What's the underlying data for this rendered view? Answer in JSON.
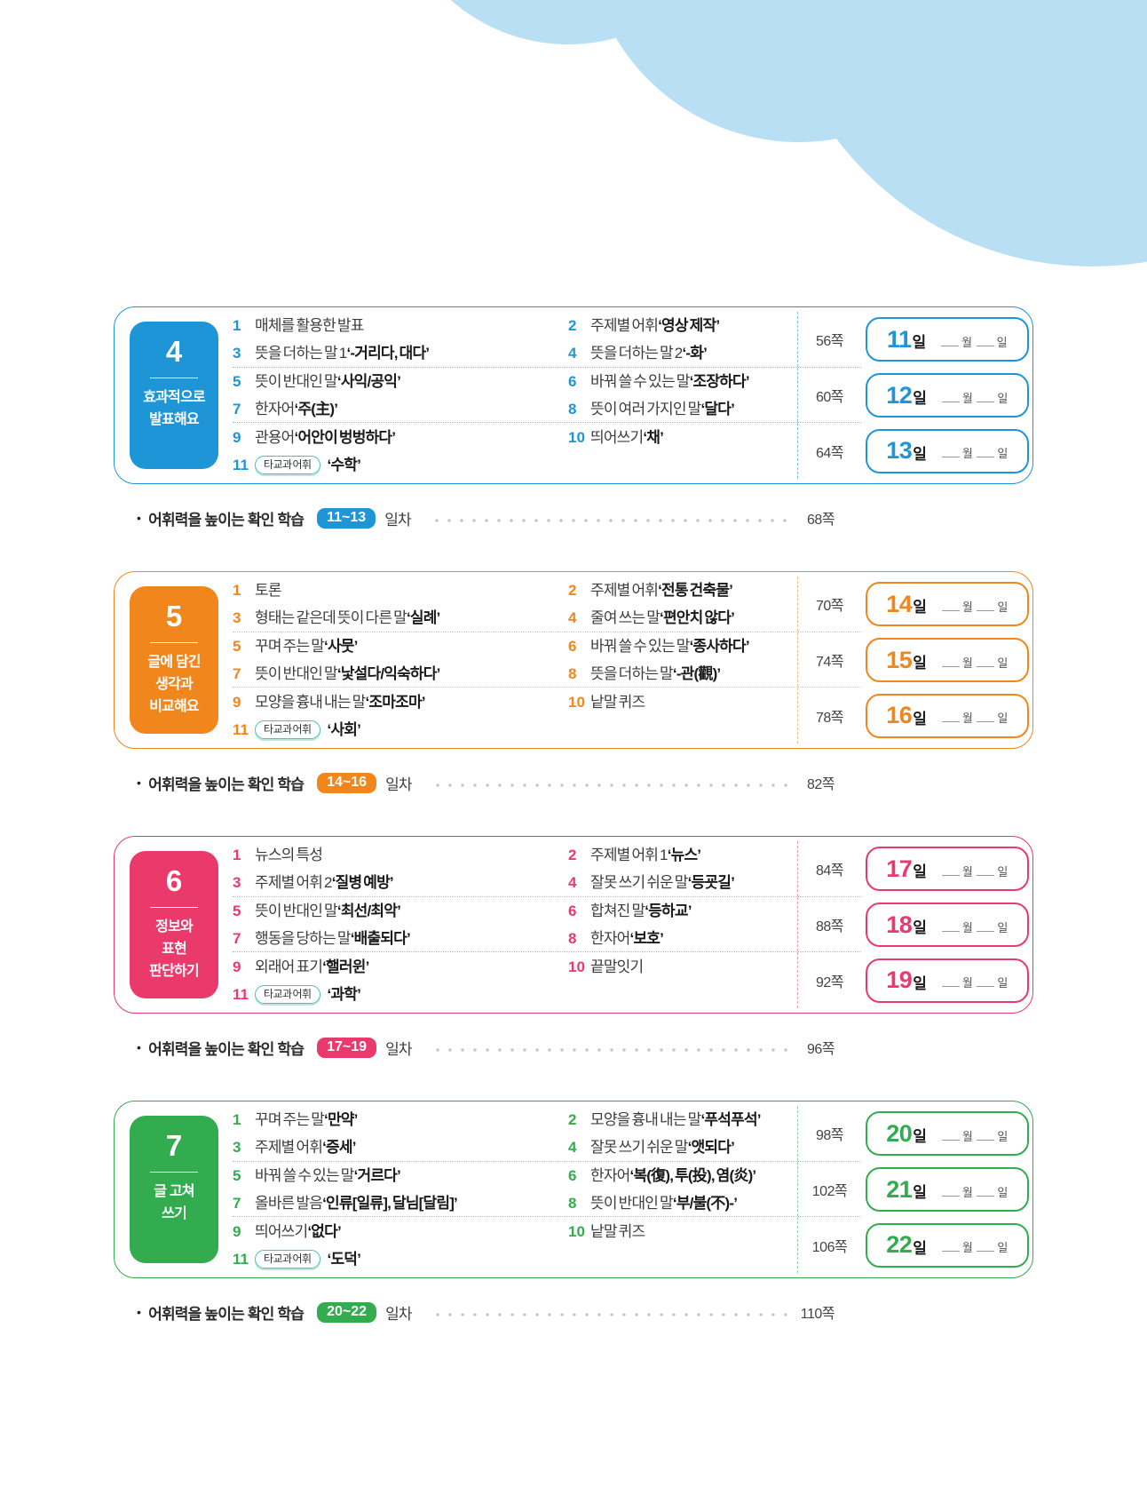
{
  "page": {
    "background": "#ffffff",
    "cloud_color": "#b8dff4"
  },
  "badge_label": "타교과 어휘",
  "day_box_template": {
    "day_suffix": "일",
    "month_label": "월",
    "date_label": "일"
  },
  "check_template": {
    "bullet": "•",
    "label": "어휘력을 높이는 확인 학습",
    "suffix": "일차"
  },
  "sections": [
    {
      "number": "4",
      "title_lines": [
        "효과적으로",
        "발표해요"
      ],
      "color": "#1e95d6",
      "color_light": "#7ec2e8",
      "rows": [
        {
          "page": "56쪽",
          "day_number": "11",
          "left": [
            {
              "num": "1",
              "pre": "매체를 활용한 발표",
              "bold": ""
            },
            {
              "num": "3",
              "pre": "뜻을 더하는 말 1 ",
              "bold": "‘-거리다, 대다’"
            }
          ],
          "right": [
            {
              "num": "2",
              "pre": "주제별 어휘 ",
              "bold": "‘영상 제작’"
            },
            {
              "num": "4",
              "pre": "뜻을 더하는 말 2 ",
              "bold": "‘-화’"
            }
          ]
        },
        {
          "page": "60쪽",
          "day_number": "12",
          "left": [
            {
              "num": "5",
              "pre": "뜻이 반대인 말 ",
              "bold": "‘사익/공익’"
            },
            {
              "num": "7",
              "pre": "한자어 ",
              "bold": "‘주(主)’"
            }
          ],
          "right": [
            {
              "num": "6",
              "pre": "바꿔 쓸 수 있는 말 ",
              "bold": "‘조장하다’"
            },
            {
              "num": "8",
              "pre": "뜻이 여러 가지인 말 ",
              "bold": "‘달다’"
            }
          ]
        },
        {
          "page": "64쪽",
          "day_number": "13",
          "left": [
            {
              "num": "9",
              "pre": "관용어 ",
              "bold": "‘어안이 벙벙하다’"
            },
            {
              "num": "11",
              "badge": true,
              "pre": "",
              "bold": "‘수학’"
            }
          ],
          "right": [
            {
              "num": "10",
              "pre": "띄어쓰기 ",
              "bold": "‘채’"
            }
          ]
        }
      ],
      "check": {
        "range": "11~13",
        "page": "68쪽"
      }
    },
    {
      "number": "5",
      "title_lines": [
        "글에 담긴",
        "생각과",
        "비교해요"
      ],
      "color": "#f0861c",
      "color_light": "#f6bd85",
      "rows": [
        {
          "page": "70쪽",
          "day_number": "14",
          "left": [
            {
              "num": "1",
              "pre": "토론",
              "bold": ""
            },
            {
              "num": "3",
              "pre": "형태는 같은데 뜻이 다른 말 ",
              "bold": "‘실례’"
            }
          ],
          "right": [
            {
              "num": "2",
              "pre": "주제별 어휘 ",
              "bold": "‘전통 건축물’"
            },
            {
              "num": "4",
              "pre": "줄여 쓰는 말 ",
              "bold": "‘편안치 않다’"
            }
          ]
        },
        {
          "page": "74쪽",
          "day_number": "15",
          "left": [
            {
              "num": "5",
              "pre": "꾸며 주는 말 ",
              "bold": "‘사뭇’"
            },
            {
              "num": "7",
              "pre": "뜻이 반대인 말 ",
              "bold": "‘낯설다/익숙하다’"
            }
          ],
          "right": [
            {
              "num": "6",
              "pre": "바꿔 쓸 수 있는 말 ",
              "bold": "‘종사하다’"
            },
            {
              "num": "8",
              "pre": "뜻을 더하는 말 ",
              "bold": "‘-관(觀)’"
            }
          ]
        },
        {
          "page": "78쪽",
          "day_number": "16",
          "left": [
            {
              "num": "9",
              "pre": "모양을 흉내 내는 말 ",
              "bold": "‘조마조마’"
            },
            {
              "num": "11",
              "badge": true,
              "pre": "",
              "bold": "‘사회’"
            }
          ],
          "right": [
            {
              "num": "10",
              "pre": "낱말 퀴즈",
              "bold": ""
            }
          ]
        }
      ],
      "check": {
        "range": "14~16",
        "page": "82쪽"
      }
    },
    {
      "number": "6",
      "title_lines": [
        "정보와",
        "표현",
        "판단하기"
      ],
      "color": "#ea3a6b",
      "color_light": "#f49ab4",
      "rows": [
        {
          "page": "84쪽",
          "day_number": "17",
          "left": [
            {
              "num": "1",
              "pre": "뉴스의 특성",
              "bold": ""
            },
            {
              "num": "3",
              "pre": "주제별 어휘 2 ",
              "bold": "‘질병 예방’"
            }
          ],
          "right": [
            {
              "num": "2",
              "pre": "주제별 어휘 1 ",
              "bold": "‘뉴스’"
            },
            {
              "num": "4",
              "pre": "잘못 쓰기 쉬운 말 ",
              "bold": "‘등굣길’"
            }
          ]
        },
        {
          "page": "88쪽",
          "day_number": "18",
          "left": [
            {
              "num": "5",
              "pre": "뜻이 반대인 말 ",
              "bold": "‘최선/최악’"
            },
            {
              "num": "7",
              "pre": "행동을 당하는 말 ",
              "bold": "‘배출되다’"
            }
          ],
          "right": [
            {
              "num": "6",
              "pre": "합쳐진 말 ",
              "bold": "‘등하교’"
            },
            {
              "num": "8",
              "pre": "한자어 ",
              "bold": "‘보호’"
            }
          ]
        },
        {
          "page": "92쪽",
          "day_number": "19",
          "left": [
            {
              "num": "9",
              "pre": "외래어 표기 ",
              "bold": "‘핼러윈’"
            },
            {
              "num": "11",
              "badge": true,
              "pre": "",
              "bold": "‘과학’"
            }
          ],
          "right": [
            {
              "num": "10",
              "pre": "끝말잇기",
              "bold": ""
            }
          ]
        }
      ],
      "check": {
        "range": "17~19",
        "page": "96쪽"
      }
    },
    {
      "number": "7",
      "title_lines": [
        "글 고쳐",
        "쓰기"
      ],
      "color": "#33ab4f",
      "color_light": "#93d4a5",
      "rows": [
        {
          "page": "98쪽",
          "day_number": "20",
          "left": [
            {
              "num": "1",
              "pre": "꾸며 주는 말 ",
              "bold": "‘만약’"
            },
            {
              "num": "3",
              "pre": "주제별 어휘 ",
              "bold": "‘증세’"
            }
          ],
          "right": [
            {
              "num": "2",
              "pre": "모양을 흉내 내는 말 ",
              "bold": "‘푸석푸석’"
            },
            {
              "num": "4",
              "pre": "잘못 쓰기 쉬운 말 ",
              "bold": "‘앳되다’"
            }
          ]
        },
        {
          "page": "102쪽",
          "day_number": "21",
          "left": [
            {
              "num": "5",
              "pre": "바꿔 쓸 수 있는 말 ",
              "bold": "‘거르다’"
            },
            {
              "num": "7",
              "pre": "올바른 발음 ",
              "bold": "‘인류[일류], 달님[달림]’"
            }
          ],
          "right": [
            {
              "num": "6",
              "pre": "한자어 ",
              "bold": "‘복(復), 투(投), 염(炎)’"
            },
            {
              "num": "8",
              "pre": "뜻이 반대인 말 ",
              "bold": "‘부/불(不)-’"
            }
          ]
        },
        {
          "page": "106쪽",
          "day_number": "22",
          "left": [
            {
              "num": "9",
              "pre": "띄어쓰기 ",
              "bold": "‘없다’"
            },
            {
              "num": "11",
              "badge": true,
              "pre": "",
              "bold": "‘도덕’"
            }
          ],
          "right": [
            {
              "num": "10",
              "pre": "낱말 퀴즈",
              "bold": ""
            }
          ]
        }
      ],
      "check": {
        "range": "20~22",
        "page": "110쪽"
      }
    }
  ]
}
